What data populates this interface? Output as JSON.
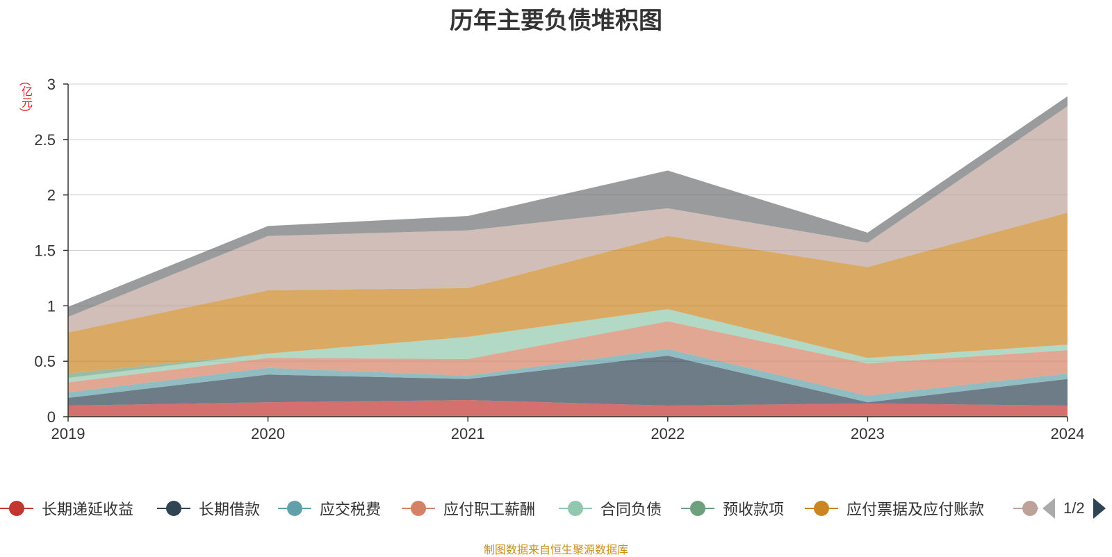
{
  "chart_data": {
    "type": "area",
    "stacked": true,
    "title": "历年主要负债堆积图",
    "unit_label": "(亿元)",
    "x": [
      "2019",
      "2020",
      "2021",
      "2022",
      "2023",
      "2024"
    ],
    "ylim": [
      0,
      3
    ],
    "yticks": [
      "0",
      "0.5",
      "1",
      "1.5",
      "2",
      "2.5",
      "3"
    ],
    "grid": true,
    "legend_position": "bottom",
    "series": [
      {
        "name": "长期递延收益",
        "color": "#c23531",
        "values": [
          0.1,
          0.13,
          0.15,
          0.1,
          0.12,
          0.1
        ]
      },
      {
        "name": "长期借款",
        "color": "#2f4554",
        "values": [
          0.07,
          0.25,
          0.19,
          0.45,
          0.01,
          0.24
        ]
      },
      {
        "name": "应交税费",
        "color": "#61a0a8",
        "values": [
          0.05,
          0.06,
          0.03,
          0.06,
          0.06,
          0.05
        ]
      },
      {
        "name": "应付职工薪酬",
        "color": "#d48265",
        "values": [
          0.09,
          0.09,
          0.15,
          0.25,
          0.29,
          0.21
        ]
      },
      {
        "name": "合同负债",
        "color": "#91c7ae",
        "values": [
          0.04,
          0.04,
          0.2,
          0.11,
          0.05,
          0.05
        ]
      },
      {
        "name": "预收款项",
        "color": "#6e9f7e",
        "values": [
          0.04,
          0.0,
          0.0,
          0.0,
          0.0,
          0.0
        ]
      },
      {
        "name": "应付票据及应付账款",
        "color": "#ca8622",
        "values": [
          0.37,
          0.57,
          0.44,
          0.66,
          0.82,
          1.19
        ]
      },
      {
        "name": "",
        "color": "#bda29a",
        "values": [
          0.14,
          0.49,
          0.52,
          0.25,
          0.22,
          0.96
        ]
      },
      {
        "name": "",
        "color": "#6e7074",
        "values": [
          0.09,
          0.09,
          0.13,
          0.34,
          0.09,
          0.09
        ]
      }
    ]
  },
  "legend": {
    "page_indicator": "1/2"
  },
  "source": "制图数据来自恒生聚源数据库"
}
